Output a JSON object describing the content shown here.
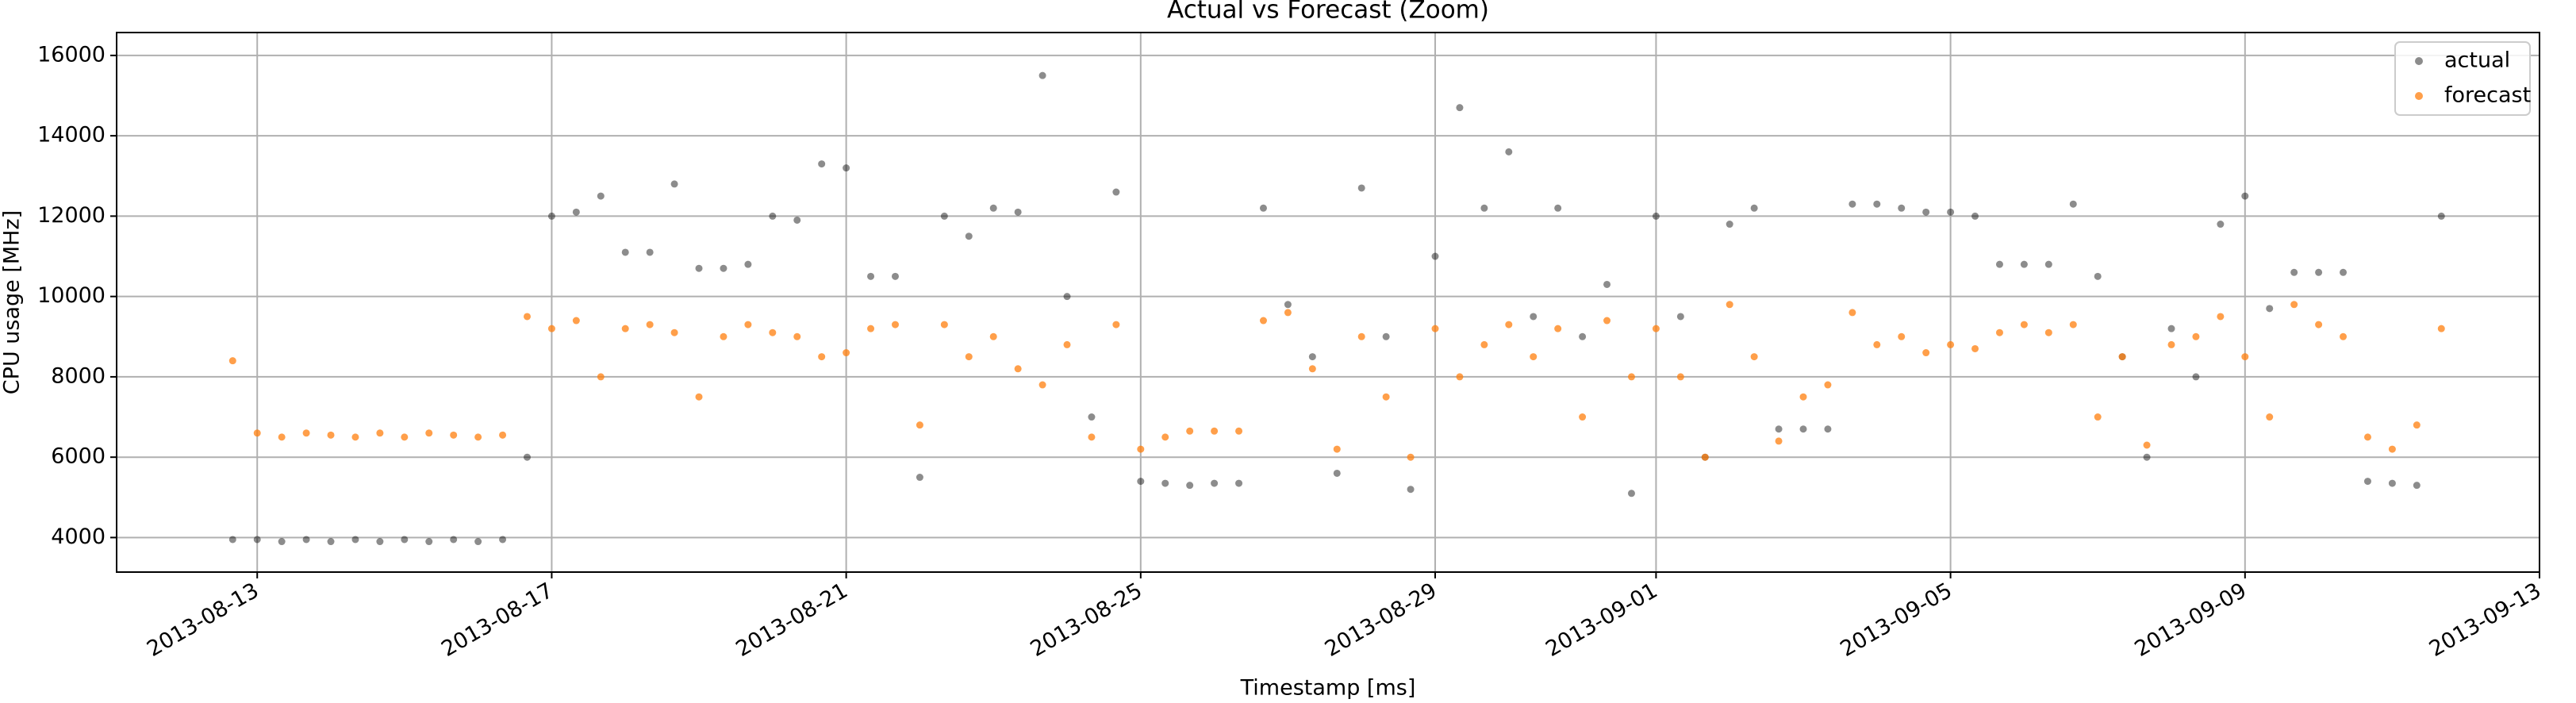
{
  "chart_data": {
    "type": "scatter",
    "title": "Actual vs Forecast (Zoom)",
    "x_label": "Timestamp [ms]",
    "y_label": "CPU usage [MHz]",
    "x": [
      1376323200000,
      1376352000000,
      1376380800000,
      1376409600000,
      1376438400000,
      1376467200000,
      1376496000000,
      1376524800000,
      1376553600000,
      1376582400000,
      1376611200000,
      1376640000000,
      1376668800000,
      1376697600000,
      1376726400000,
      1376755200000,
      1376784000000,
      1376812800000,
      1376841600000,
      1376870400000,
      1376899200000,
      1376928000000,
      1376956800000,
      1376985600000,
      1377014400000,
      1377043200000,
      1377072000000,
      1377100800000,
      1377129600000,
      1377158400000,
      1377187200000,
      1377216000000,
      1377244800000,
      1377273600000,
      1377302400000,
      1377331200000,
      1377360000000,
      1377388800000,
      1377417600000,
      1377446400000,
      1377475200000,
      1377504000000,
      1377532800000,
      1377561600000,
      1377590400000,
      1377619200000,
      1377648000000,
      1377676800000,
      1377705600000,
      1377734400000,
      1377763200000,
      1377792000000,
      1377820800000,
      1377849600000,
      1377878400000,
      1377907200000,
      1377936000000,
      1377964800000,
      1377993600000,
      1378022400000,
      1378051200000,
      1378080000000,
      1378108800000,
      1378137600000,
      1378166400000,
      1378195200000,
      1378224000000,
      1378252800000,
      1378281600000,
      1378310400000,
      1378339200000,
      1378368000000,
      1378396800000,
      1378425600000,
      1378454400000,
      1378483200000,
      1378512000000,
      1378540800000,
      1378569600000,
      1378598400000,
      1378627200000,
      1378656000000,
      1378684800000,
      1378713600000,
      1378742400000,
      1378771200000,
      1378800000000,
      1378828800000,
      1378857600000,
      1378886400000,
      1378915200000
    ],
    "series": [
      {
        "name": "actual",
        "color": "#000000",
        "values": [
          3950,
          3950,
          3900,
          3950,
          3900,
          3950,
          3900,
          3950,
          3900,
          3950,
          3900,
          3950,
          6000,
          12000,
          12100,
          12500,
          11100,
          11100,
          12800,
          10700,
          10700,
          10800,
          12000,
          11900,
          13300,
          13200,
          10500,
          10500,
          5500,
          12000,
          11500,
          12200,
          12100,
          15500,
          10000,
          7000,
          12600,
          5400,
          5350,
          5300,
          5350,
          5350,
          12200,
          9800,
          8500,
          5600,
          12700,
          9000,
          5200,
          11000,
          14700,
          12200,
          13600,
          9500,
          12200,
          9000,
          10300,
          5100,
          12000,
          9500,
          6000,
          11800,
          12200,
          6700,
          6700,
          6700,
          12300,
          12300,
          12200,
          12100,
          12100,
          12000,
          10800,
          10800,
          10800,
          12300,
          10500,
          8500,
          6000,
          9200,
          8000,
          11800,
          12500,
          9700,
          10600,
          10600,
          10600,
          5400,
          5350,
          5300,
          12000
        ]
      },
      {
        "name": "forecast",
        "color": "#ff7f0e",
        "values": [
          8400,
          6600,
          6500,
          6600,
          6550,
          6500,
          6600,
          6500,
          6600,
          6550,
          6500,
          6550,
          9500,
          9200,
          9400,
          8000,
          9200,
          9300,
          9100,
          7500,
          9000,
          9300,
          9100,
          9000,
          8500,
          8600,
          9200,
          9300,
          6800,
          9300,
          8500,
          9000,
          8200,
          7800,
          8800,
          6500,
          9300,
          6200,
          6500,
          6650,
          6650,
          6650,
          9400,
          9600,
          8200,
          6200,
          9000,
          7500,
          6000,
          9200,
          8000,
          8800,
          9300,
          8500,
          9200,
          7000,
          9400,
          8000,
          9200,
          8000,
          6000,
          9800,
          8500,
          6400,
          7500,
          7800,
          9600,
          8800,
          9000,
          8600,
          8800,
          8700,
          9100,
          9300,
          9100,
          9300,
          7000,
          8500,
          6300,
          8800,
          9000,
          9500,
          8500,
          7000,
          9800,
          9300,
          9000,
          6500,
          6200,
          6800,
          9200
        ]
      }
    ],
    "xlim": [
      1376187000000,
      1379030400000
    ],
    "xticks": [
      {
        "value": 1376352000000,
        "label": "2013-08-13"
      },
      {
        "value": 1376697600000,
        "label": "2013-08-17"
      },
      {
        "value": 1377043200000,
        "label": "2013-08-21"
      },
      {
        "value": 1377388800000,
        "label": "2013-08-25"
      },
      {
        "value": 1377734400000,
        "label": "2013-08-29"
      },
      {
        "value": 1377993600000,
        "label": "2013-09-01"
      },
      {
        "value": 1378339200000,
        "label": "2013-09-05"
      },
      {
        "value": 1378684800000,
        "label": "2013-09-09"
      },
      {
        "value": 1379030400000,
        "label": "2013-09-13"
      }
    ],
    "ylim": [
      3140,
      16570
    ],
    "yticks": [
      4000,
      6000,
      8000,
      10000,
      12000,
      14000,
      16000
    ],
    "grid": true,
    "legend": "upper right"
  }
}
